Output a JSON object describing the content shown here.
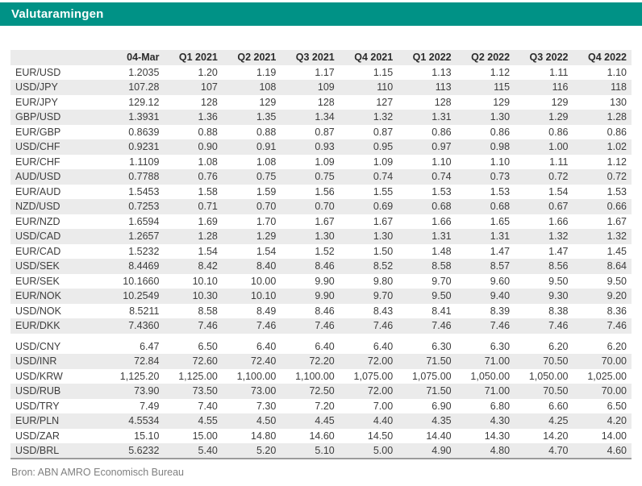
{
  "title": "Valutaramingen",
  "source_note": "Bron: ABN AMRO Economisch Bureau",
  "colors": {
    "accent_teal": "#009286",
    "stripe_gray": "#ebebeb",
    "text_dark": "#3d3d3d",
    "muted_gray": "#808080",
    "rule_gray": "#9b9b9b"
  },
  "table": {
    "columns": [
      "",
      "04-Mar",
      "Q1 2021",
      "Q2 2021",
      "Q3 2021",
      "Q4 2021",
      "Q1 2022",
      "Q2 2022",
      "Q3 2022",
      "Q4 2022"
    ],
    "groups": [
      {
        "rows": [
          {
            "pair": "EUR/USD",
            "values": [
              "1.2035",
              "1.20",
              "1.19",
              "1.17",
              "1.15",
              "1.13",
              "1.12",
              "1.11",
              "1.10"
            ]
          },
          {
            "pair": "USD/JPY",
            "values": [
              "107.28",
              "107",
              "108",
              "109",
              "110",
              "113",
              "115",
              "116",
              "118"
            ]
          },
          {
            "pair": "EUR/JPY",
            "values": [
              "129.12",
              "128",
              "129",
              "128",
              "127",
              "128",
              "129",
              "129",
              "130"
            ]
          },
          {
            "pair": "GBP/USD",
            "values": [
              "1.3931",
              "1.36",
              "1.35",
              "1.34",
              "1.32",
              "1.31",
              "1.30",
              "1.29",
              "1.28"
            ]
          },
          {
            "pair": "EUR/GBP",
            "values": [
              "0.8639",
              "0.88",
              "0.88",
              "0.87",
              "0.87",
              "0.86",
              "0.86",
              "0.86",
              "0.86"
            ]
          },
          {
            "pair": "USD/CHF",
            "values": [
              "0.9231",
              "0.90",
              "0.91",
              "0.93",
              "0.95",
              "0.97",
              "0.98",
              "1.00",
              "1.02"
            ]
          },
          {
            "pair": "EUR/CHF",
            "values": [
              "1.1109",
              "1.08",
              "1.08",
              "1.09",
              "1.09",
              "1.10",
              "1.10",
              "1.11",
              "1.12"
            ]
          },
          {
            "pair": "AUD/USD",
            "values": [
              "0.7788",
              "0.76",
              "0.75",
              "0.75",
              "0.74",
              "0.74",
              "0.73",
              "0.72",
              "0.72"
            ]
          },
          {
            "pair": "EUR/AUD",
            "values": [
              "1.5453",
              "1.58",
              "1.59",
              "1.56",
              "1.55",
              "1.53",
              "1.53",
              "1.54",
              "1.53"
            ]
          },
          {
            "pair": "NZD/USD",
            "values": [
              "0.7253",
              "0.71",
              "0.70",
              "0.70",
              "0.69",
              "0.68",
              "0.68",
              "0.67",
              "0.66"
            ]
          },
          {
            "pair": "EUR/NZD",
            "values": [
              "1.6594",
              "1.69",
              "1.70",
              "1.67",
              "1.67",
              "1.66",
              "1.65",
              "1.66",
              "1.67"
            ]
          },
          {
            "pair": "USD/CAD",
            "values": [
              "1.2657",
              "1.28",
              "1.29",
              "1.30",
              "1.30",
              "1.31",
              "1.31",
              "1.32",
              "1.32"
            ]
          },
          {
            "pair": "EUR/CAD",
            "values": [
              "1.5232",
              "1.54",
              "1.54",
              "1.52",
              "1.50",
              "1.48",
              "1.47",
              "1.47",
              "1.45"
            ]
          },
          {
            "pair": "USD/SEK",
            "values": [
              "8.4469",
              "8.42",
              "8.40",
              "8.46",
              "8.52",
              "8.58",
              "8.57",
              "8.56",
              "8.64"
            ]
          },
          {
            "pair": "EUR/SEK",
            "values": [
              "10.1660",
              "10.10",
              "10.00",
              "9.90",
              "9.80",
              "9.70",
              "9.60",
              "9.50",
              "9.50"
            ]
          },
          {
            "pair": "EUR/NOK",
            "values": [
              "10.2549",
              "10.30",
              "10.10",
              "9.90",
              "9.70",
              "9.50",
              "9.40",
              "9.30",
              "9.20"
            ]
          },
          {
            "pair": "USD/NOK",
            "values": [
              "8.5211",
              "8.58",
              "8.49",
              "8.46",
              "8.43",
              "8.41",
              "8.39",
              "8.38",
              "8.36"
            ]
          },
          {
            "pair": "EUR/DKK",
            "values": [
              "7.4360",
              "7.46",
              "7.46",
              "7.46",
              "7.46",
              "7.46",
              "7.46",
              "7.46",
              "7.46"
            ]
          }
        ]
      },
      {
        "rows": [
          {
            "pair": "USD/CNY",
            "values": [
              "6.47",
              "6.50",
              "6.40",
              "6.40",
              "6.40",
              "6.30",
              "6.30",
              "6.20",
              "6.20"
            ]
          },
          {
            "pair": "USD/INR",
            "values": [
              "72.84",
              "72.60",
              "72.40",
              "72.20",
              "72.00",
              "71.50",
              "71.00",
              "70.50",
              "70.00"
            ]
          },
          {
            "pair": "USD/KRW",
            "values": [
              "1,125.20",
              "1,125.00",
              "1,100.00",
              "1,100.00",
              "1,075.00",
              "1,075.00",
              "1,050.00",
              "1,050.00",
              "1,025.00"
            ]
          },
          {
            "pair": "USD/RUB",
            "values": [
              "73.90",
              "73.50",
              "73.00",
              "72.50",
              "72.00",
              "71.50",
              "71.00",
              "70.50",
              "70.00"
            ]
          },
          {
            "pair": "USD/TRY",
            "values": [
              "7.49",
              "7.40",
              "7.30",
              "7.20",
              "7.00",
              "6.90",
              "6.80",
              "6.60",
              "6.50"
            ]
          },
          {
            "pair": "EUR/PLN",
            "values": [
              "4.5534",
              "4.55",
              "4.50",
              "4.45",
              "4.40",
              "4.35",
              "4.30",
              "4.25",
              "4.20"
            ]
          },
          {
            "pair": "USD/ZAR",
            "values": [
              "15.10",
              "15.00",
              "14.80",
              "14.60",
              "14.50",
              "14.40",
              "14.30",
              "14.20",
              "14.00"
            ]
          },
          {
            "pair": "USD/BRL",
            "values": [
              "5.6232",
              "5.40",
              "5.20",
              "5.10",
              "5.00",
              "4.90",
              "4.80",
              "4.70",
              "4.60"
            ]
          }
        ]
      }
    ]
  }
}
